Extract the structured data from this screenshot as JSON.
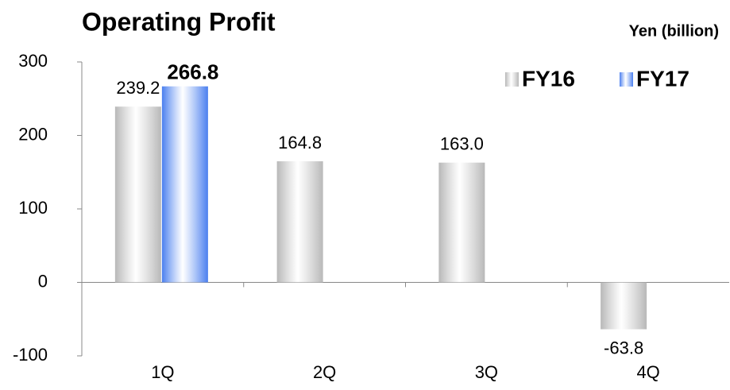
{
  "chart_data": {
    "type": "bar",
    "title": "Operating Profit",
    "unit_label": "Yen (billion)",
    "categories": [
      "1Q",
      "2Q",
      "3Q",
      "4Q"
    ],
    "series": [
      {
        "name": "FY16",
        "color": "#b8b8b8",
        "values": [
          239.2,
          164.8,
          163.0,
          -63.8
        ],
        "value_labels": [
          "239.2",
          "164.8",
          "163.0",
          "-63.8"
        ]
      },
      {
        "name": "FY17",
        "color": "#4a7fef",
        "values": [
          266.8,
          null,
          null,
          null
        ],
        "value_labels": [
          "266.8",
          null,
          null,
          null
        ]
      }
    ],
    "ylim": [
      -100,
      300
    ],
    "yticks": [
      -100,
      0,
      100,
      200,
      300
    ],
    "legend": "top-right"
  }
}
